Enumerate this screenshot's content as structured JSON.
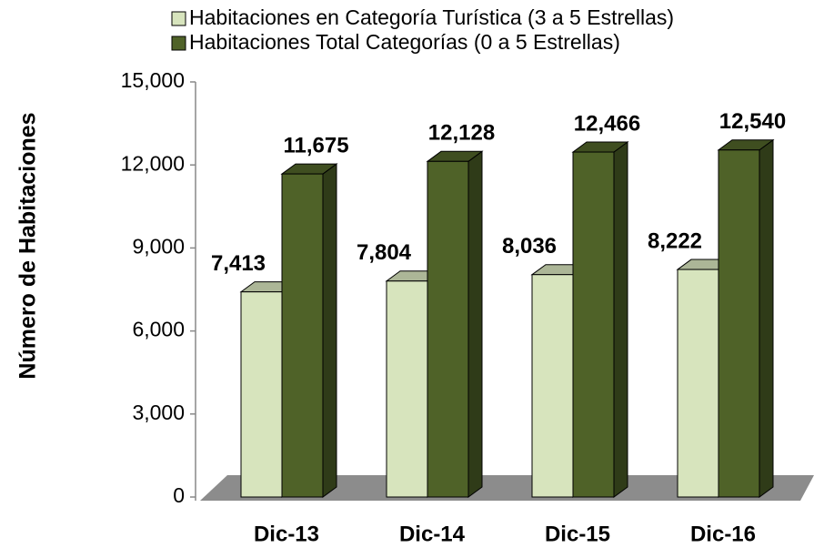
{
  "chart_data": {
    "type": "bar3d",
    "y_label": "Número de Habitaciones",
    "categories": [
      "Dic-13",
      "Dic-14",
      "Dic-15",
      "Dic-16"
    ],
    "series": [
      {
        "name": "Habitaciones en Categoría Turística (3 a 5 Estrellas)",
        "color": "#d7e4bd",
        "values": [
          7413,
          7804,
          8036,
          8222
        ],
        "value_labels": [
          "7,413",
          "7,804",
          "8,036",
          "8,222"
        ]
      },
      {
        "name": "Habitaciones Total Categorías (0 a 5 Estrellas)",
        "color": "#4f6228",
        "values": [
          11675,
          12128,
          12466,
          12540
        ],
        "value_labels": [
          "11,675",
          "12,128",
          "12,466",
          "12,540"
        ]
      }
    ],
    "ylim": [
      0,
      15000
    ],
    "yticks": [
      0,
      {
        "value": 3000,
        "label": "3,000"
      },
      {
        "value": 6000,
        "label": "6,000"
      },
      {
        "value": 9000,
        "label": "9,000"
      },
      {
        "value": 12000,
        "label": "12,000"
      },
      {
        "value": 15000,
        "label": "15,000"
      }
    ]
  }
}
